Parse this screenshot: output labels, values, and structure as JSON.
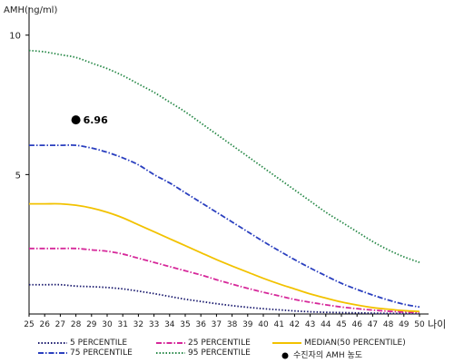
{
  "chart_data": {
    "type": "line",
    "ylabel": "AMH(ng/ml)",
    "xlabel": "나이",
    "ylim": [
      0,
      11
    ],
    "xlim": [
      25,
      50
    ],
    "yticks": [
      5,
      10
    ],
    "x": [
      25,
      26,
      27,
      28,
      29,
      30,
      31,
      32,
      33,
      34,
      35,
      36,
      37,
      38,
      39,
      40,
      41,
      42,
      43,
      44,
      45,
      46,
      47,
      48,
      49,
      50
    ],
    "series": [
      {
        "name": "5 PERCENTILE",
        "color": "#1a1a6e",
        "style": "dotted",
        "values": [
          1.05,
          1.05,
          1.05,
          1.0,
          0.98,
          0.95,
          0.9,
          0.82,
          0.73,
          0.63,
          0.53,
          0.45,
          0.37,
          0.3,
          0.24,
          0.19,
          0.15,
          0.11,
          0.08,
          0.06,
          0.05,
          0.04,
          0.03,
          0.02,
          0.02,
          0.02
        ]
      },
      {
        "name": "25 PERCENTILE",
        "color": "#d6289a",
        "style": "dashdot",
        "values": [
          2.35,
          2.35,
          2.35,
          2.35,
          2.3,
          2.25,
          2.15,
          2.0,
          1.85,
          1.7,
          1.55,
          1.4,
          1.23,
          1.07,
          0.92,
          0.78,
          0.65,
          0.52,
          0.42,
          0.33,
          0.25,
          0.19,
          0.14,
          0.1,
          0.07,
          0.05
        ]
      },
      {
        "name": "MEDIAN(50 PERCENTILE)",
        "color": "#f2c200",
        "style": "solid",
        "values": [
          3.95,
          3.95,
          3.95,
          3.9,
          3.8,
          3.65,
          3.45,
          3.2,
          2.95,
          2.7,
          2.45,
          2.2,
          1.95,
          1.72,
          1.5,
          1.28,
          1.08,
          0.9,
          0.72,
          0.57,
          0.43,
          0.32,
          0.23,
          0.17,
          0.12,
          0.09
        ]
      },
      {
        "name": "75 PERCENTILE",
        "color": "#2a3fbf",
        "style": "dashdot",
        "values": [
          6.05,
          6.05,
          6.05,
          6.05,
          5.95,
          5.8,
          5.6,
          5.35,
          5.0,
          4.7,
          4.35,
          4.0,
          3.65,
          3.3,
          2.95,
          2.6,
          2.27,
          1.95,
          1.65,
          1.37,
          1.1,
          0.88,
          0.68,
          0.5,
          0.35,
          0.25
        ]
      },
      {
        "name": "95 PERCENTILE",
        "color": "#2a8a4a",
        "style": "dotted",
        "values": [
          9.45,
          9.4,
          9.3,
          9.2,
          9.0,
          8.8,
          8.55,
          8.25,
          7.95,
          7.6,
          7.25,
          6.85,
          6.45,
          6.05,
          5.65,
          5.25,
          4.85,
          4.45,
          4.05,
          3.65,
          3.3,
          2.95,
          2.6,
          2.3,
          2.05,
          1.85
        ]
      }
    ],
    "highlight": {
      "name": "수진자의 AMH 농도",
      "x": 28,
      "y": 6.96,
      "label": "6.96",
      "color": "#000000"
    },
    "legend_position": "bottom"
  },
  "legend": [
    {
      "series": "5 PERCENTILE",
      "label": "5 PERCENTILE"
    },
    {
      "series": "25 PERCENTILE",
      "label": "25 PERCENTILE"
    },
    {
      "series": "MEDIAN(50 PERCENTILE)",
      "label": "MEDIAN(50 PERCENTILE)"
    },
    {
      "series": "75 PERCENTILE",
      "label": "75 PERCENTILE"
    },
    {
      "series": "95 PERCENTILE",
      "label": "95 PERCENTILE"
    },
    {
      "marker": "dot",
      "label": "수진자의 AMH 농도"
    }
  ]
}
